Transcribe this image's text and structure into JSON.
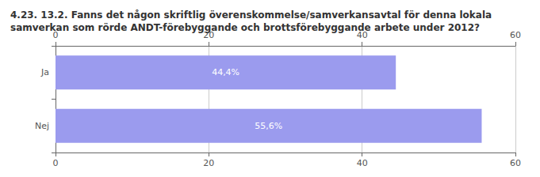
{
  "chart_data": {
    "type": "bar",
    "title": "4.23. 13.2. Fanns det någon skriftlig överenskommelse/samverkansavtal för denna lokala samverkan som rörde ANDT-förebyggande och brottsförebyggande arbete under 2012?",
    "categories": [
      "Ja",
      "Nej"
    ],
    "values": [
      44.4,
      55.6
    ],
    "value_labels": [
      "44,4%",
      "55,6%"
    ],
    "color": "#9b9bee",
    "orientation": "horizontal",
    "xlim": [
      0,
      60
    ],
    "xticks": [
      0,
      20,
      40,
      60
    ],
    "grid": true,
    "data_labels": true
  }
}
